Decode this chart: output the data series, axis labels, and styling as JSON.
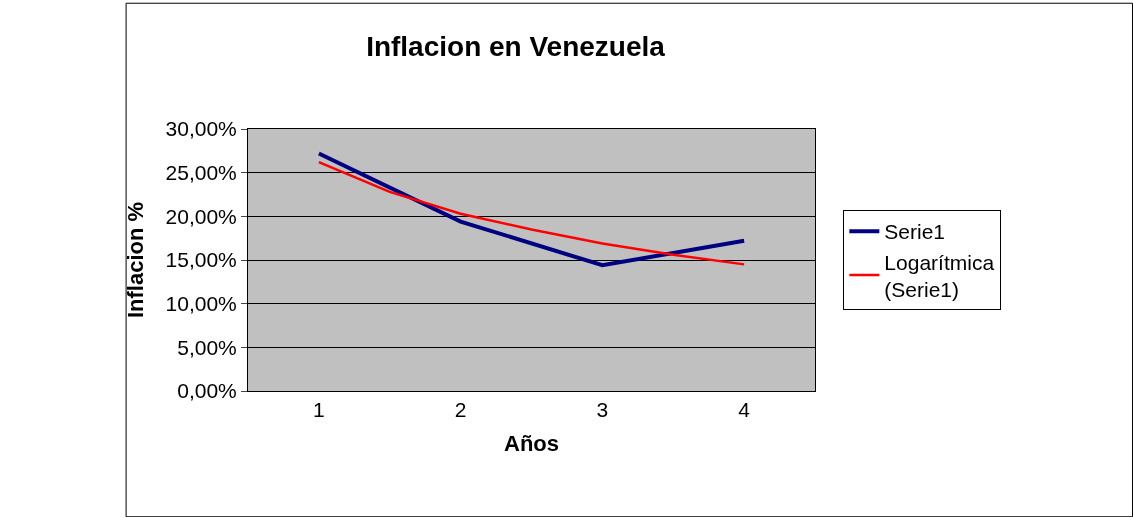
{
  "chart_data": {
    "type": "line",
    "title": "Inflacion en Venezuela",
    "xlabel": "Años",
    "ylabel": "Inflacion %",
    "x": [
      1,
      2,
      3,
      4
    ],
    "series": [
      {
        "name": "Serie1",
        "color": "#000080",
        "values": [
          27.2,
          19.4,
          14.4,
          17.2
        ]
      },
      {
        "name": "Logarítmica (Serie1)",
        "color": "#ff0000",
        "x": [
          1,
          1.5,
          2,
          2.5,
          3,
          3.5,
          4
        ],
        "values": [
          26.2,
          22.8,
          20.3,
          18.5,
          16.9,
          15.6,
          14.5
        ]
      }
    ],
    "xlim": [
      0.5,
      4.5
    ],
    "xticks": [
      1,
      2,
      3,
      4
    ],
    "ylim": [
      0,
      30
    ],
    "yticks": [
      {
        "value": 0,
        "label": "0,00%"
      },
      {
        "value": 5,
        "label": "5,00%"
      },
      {
        "value": 10,
        "label": "10,00%"
      },
      {
        "value": 15,
        "label": "15,00%"
      },
      {
        "value": 20,
        "label": "20,00%"
      },
      {
        "value": 25,
        "label": "25,00%"
      },
      {
        "value": 30,
        "label": "30,00%"
      }
    ],
    "grid": "y",
    "legend": "right",
    "marker": "none",
    "line_style": "solid"
  }
}
